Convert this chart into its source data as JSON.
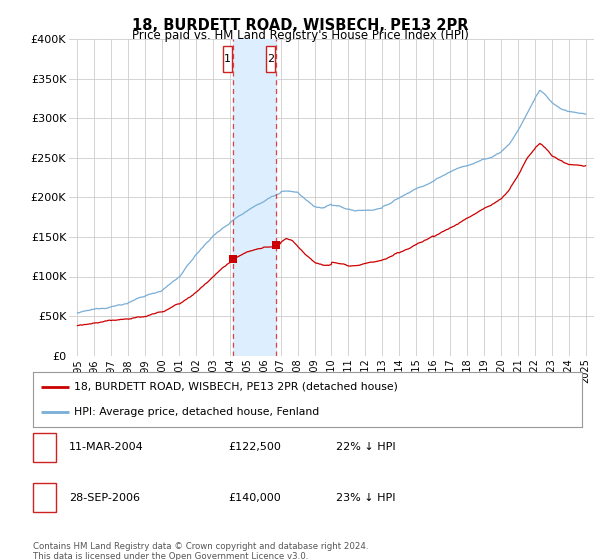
{
  "title": "18, BURDETT ROAD, WISBECH, PE13 2PR",
  "subtitle": "Price paid vs. HM Land Registry's House Price Index (HPI)",
  "legend_line1": "18, BURDETT ROAD, WISBECH, PE13 2PR (detached house)",
  "legend_line2": "HPI: Average price, detached house, Fenland",
  "transaction1_date": "11-MAR-2004",
  "transaction1_price": "£122,500",
  "transaction1_hpi": "22% ↓ HPI",
  "transaction1_year": 2004.19,
  "transaction1_value": 122500,
  "transaction2_date": "28-SEP-2006",
  "transaction2_price": "£140,000",
  "transaction2_hpi": "23% ↓ HPI",
  "transaction2_year": 2006.74,
  "transaction2_value": 140000,
  "footnote": "Contains HM Land Registry data © Crown copyright and database right 2024.\nThis data is licensed under the Open Government Licence v3.0.",
  "line_color_red": "#cc0000",
  "line_color_blue": "#7aaed6",
  "vline_color": "#dd4444",
  "span_color": "#ddeeff",
  "background_color": "#ffffff",
  "grid_color": "#cccccc",
  "ylim": [
    0,
    400000
  ],
  "yticks": [
    0,
    50000,
    100000,
    150000,
    200000,
    250000,
    300000,
    350000,
    400000
  ],
  "xlabel_years": [
    "1995",
    "1996",
    "1997",
    "1998",
    "1999",
    "2000",
    "2001",
    "2002",
    "2003",
    "2004",
    "2005",
    "2006",
    "2007",
    "2008",
    "2009",
    "2010",
    "2011",
    "2012",
    "2013",
    "2014",
    "2015",
    "2016",
    "2017",
    "2018",
    "2019",
    "2020",
    "2021",
    "2022",
    "2023",
    "2024",
    "2025"
  ]
}
